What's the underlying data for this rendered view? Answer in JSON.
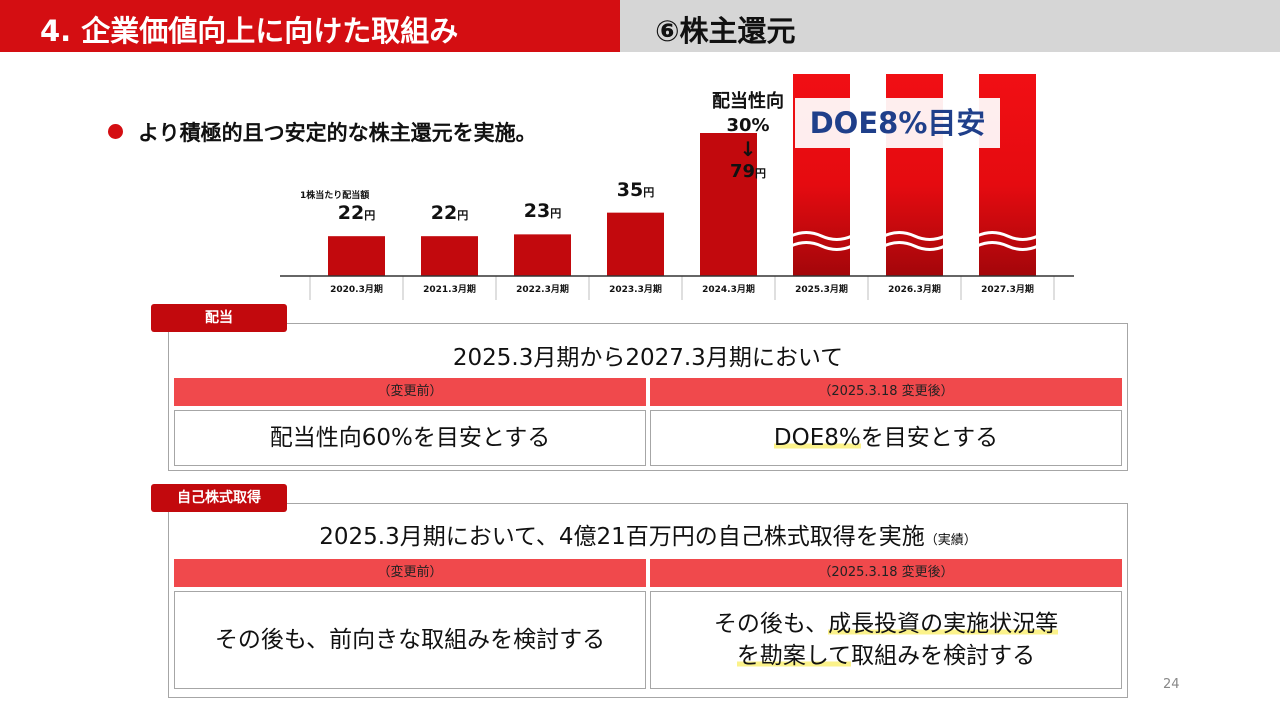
{
  "header": {
    "title": "4.  企業価値向上に向けた取組み",
    "subtitle": "⑥株主還元"
  },
  "bullet": "より積極的且つ安定的な株主還元を実施。",
  "chart_data": {
    "type": "bar",
    "title": "",
    "ylabel": "1株当たり配当額",
    "unit": "円",
    "categories": [
      "2020.3月期",
      "2021.3月期",
      "2022.3月期",
      "2023.3月期",
      "2024.3月期",
      "2025.3月期",
      "2026.3月期",
      "2027.3月期"
    ],
    "values": [
      22,
      22,
      23,
      35,
      79,
      null,
      null,
      null
    ],
    "value_labels": [
      "22",
      "22",
      "23",
      "35",
      "79",
      "",
      "",
      ""
    ],
    "annotation": {
      "line1": "配当性向",
      "line2": "30%",
      "arrow": "↓"
    },
    "target_label": "DOE8%目安",
    "bar_color": "#c2090d"
  },
  "dividend": {
    "tag": "配当",
    "title": "2025.3月期から2027.3月期において",
    "before_header": "（変更前）",
    "after_header": "（2025.3.18 変更後）",
    "before_text": "配当性向60%を目安とする",
    "after_text_hl": "DOE8%",
    "after_text_rest": "を目安とする"
  },
  "buyback": {
    "tag": "自己株式取得",
    "title": "2025.3月期において、4億21百万円の自己株式取得を実施",
    "title_note": "（実績）",
    "before_header": "（変更前）",
    "after_header": "（2025.3.18 変更後）",
    "before_text": "その後も、前向きな取組みを検討する",
    "after_line1_a": "その後も、",
    "after_line1_hl": "成長投資の実施状況等",
    "after_line2_hl": "を勘案して",
    "after_line2_rest": "取組みを検討する"
  },
  "page_number": "24"
}
